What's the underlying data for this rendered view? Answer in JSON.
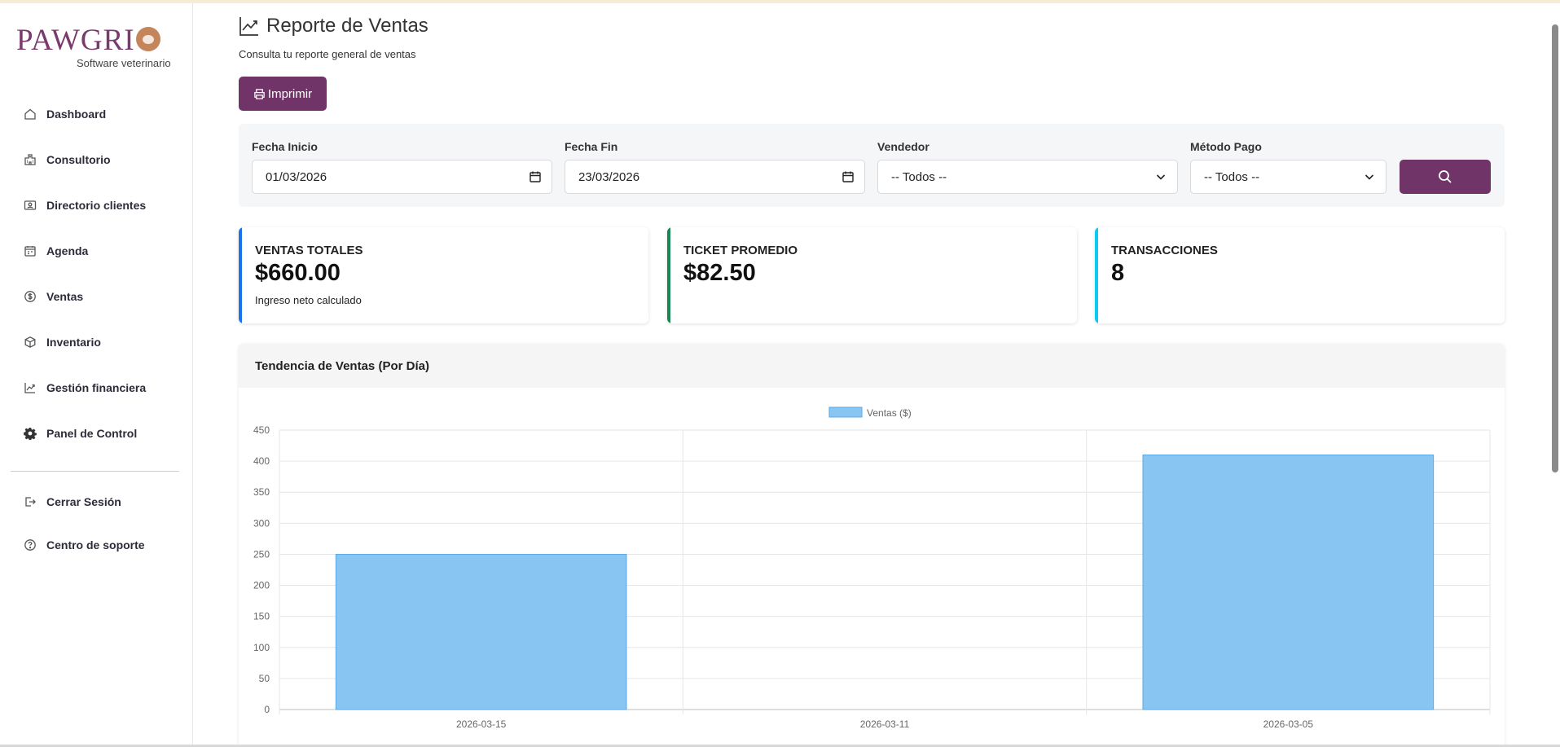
{
  "brand": {
    "name": "PAWGRI",
    "tagline": "Software veterinario",
    "color": "#7a3a6e"
  },
  "sidebar": {
    "items": [
      {
        "label": "Dashboard",
        "icon": "home-icon"
      },
      {
        "label": "Consultorio",
        "icon": "hospital-icon"
      },
      {
        "label": "Directorio clientes",
        "icon": "contact-card-icon"
      },
      {
        "label": "Agenda",
        "icon": "calendar-icon"
      },
      {
        "label": "Ventas",
        "icon": "dollar-coin-icon"
      },
      {
        "label": "Inventario",
        "icon": "box-icon"
      },
      {
        "label": "Gestión financiera",
        "icon": "trend-chart-icon"
      },
      {
        "label": "Panel de Control",
        "icon": "gear-icon"
      }
    ],
    "footer_items": [
      {
        "label": "Cerrar Sesión",
        "icon": "logout-icon"
      },
      {
        "label": "Centro de soporte",
        "icon": "help-circle-icon"
      }
    ]
  },
  "header": {
    "title": "Reporte de Ventas",
    "subtitle": "Consulta tu reporte general de ventas",
    "print_label": "Imprimir"
  },
  "filters": {
    "start_label": "Fecha Inicio",
    "start_value": "01/03/2026",
    "end_label": "Fecha Fin",
    "end_value": "23/03/2026",
    "seller_label": "Vendedor",
    "seller_value": "-- Todos --",
    "payment_label": "Método Pago",
    "payment_value": "-- Todos --"
  },
  "kpis": [
    {
      "label": "VENTAS TOTALES",
      "value": "$660.00",
      "note": "Ingreso neto calculado",
      "color": "#1a73e8"
    },
    {
      "label": "TICKET PROMEDIO",
      "value": "$82.50",
      "note": "",
      "color": "#198754"
    },
    {
      "label": "TRANSACCIONES",
      "value": "8",
      "note": "",
      "color": "#0dcaf0"
    }
  ],
  "chart_card": {
    "title": "Tendencia de Ventas (Por Día)"
  },
  "chart_data": {
    "type": "bar",
    "categories": [
      "2026-03-15",
      "2026-03-11",
      "2026-03-05"
    ],
    "series": [
      {
        "name": "Ventas ($)",
        "values": [
          250,
          0,
          410
        ],
        "color": "#88c5f2"
      }
    ],
    "yticks": [
      "0",
      "50",
      "100",
      "150",
      "200",
      "250",
      "300",
      "350",
      "400",
      "450"
    ],
    "ylim": [
      0,
      450
    ],
    "grid": true,
    "legend": "top-center"
  },
  "colors": {
    "accent": "#713468"
  }
}
